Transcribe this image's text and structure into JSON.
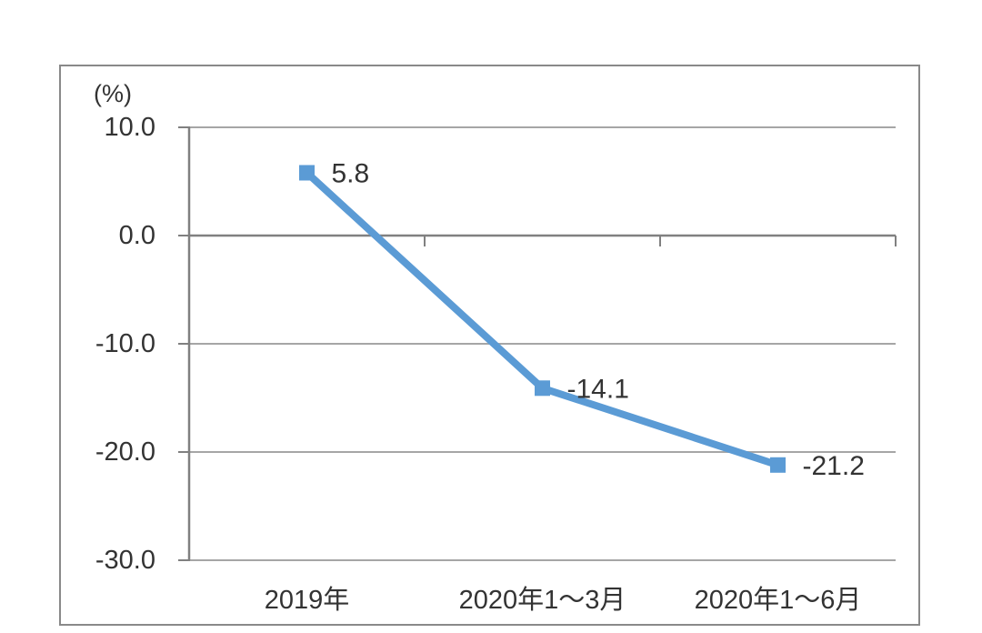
{
  "chart_data": {
    "type": "line",
    "title": "",
    "xlabel": "",
    "ylabel": "(%)",
    "categories": [
      "2019年",
      "2020年1～3月",
      "2020年1～6月"
    ],
    "values": [
      5.8,
      -14.1,
      -21.2
    ],
    "point_labels": [
      "5.8",
      "-14.1",
      "-21.2"
    ],
    "ylim": [
      -30,
      10
    ],
    "yticks": [
      10,
      0,
      -10,
      -20,
      -30
    ],
    "ytick_labels": [
      "10.0",
      "0.0",
      "-10.0",
      "-20.0",
      "-30.0"
    ],
    "grid": true,
    "legend": false,
    "axis_position": "zero-line",
    "colors": {
      "line": "#5B9BD5",
      "marker": "#5B9BD5",
      "gridline": "#A6A6A6",
      "axis": "#808080",
      "border": "#898989",
      "text": "#333333",
      "background": "#FFFFFF"
    }
  }
}
